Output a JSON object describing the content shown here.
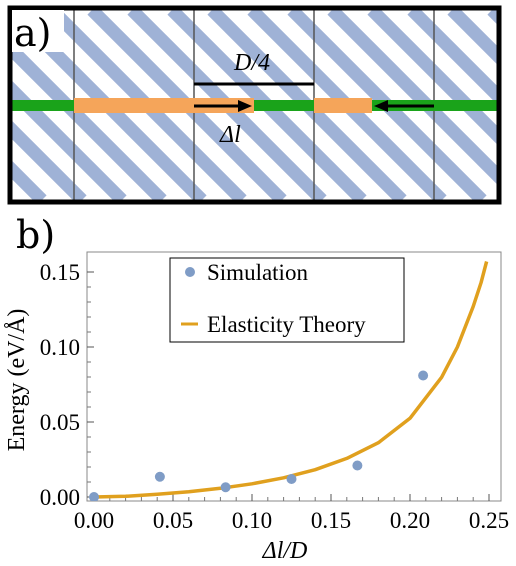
{
  "panel_a": {
    "label": "a)",
    "dimension_label": "D/4",
    "displacement_label": "Δl",
    "colors": {
      "hatch": "#9fb2d6",
      "green": "#1aa31a",
      "orange": "#f5a55a",
      "grid": "#555555",
      "frame": "#000000"
    }
  },
  "panel_b": {
    "label": "b)"
  },
  "chart_data": {
    "type": "scatter",
    "xlabel": "Δl/D",
    "ylabel": "Energy (eV/Å)",
    "xlim": [
      0.0,
      0.25
    ],
    "ylim": [
      0.0,
      0.16
    ],
    "x_ticks": [
      "0.00",
      "0.05",
      "0.10",
      "0.15",
      "0.20",
      "0.25"
    ],
    "y_ticks": [
      "0.00",
      "0.05",
      "0.10",
      "0.15"
    ],
    "legend_position": "top-center",
    "grid": false,
    "series": [
      {
        "name": "Simulation",
        "type": "scatter",
        "color": "#7f9cc6",
        "x": [
          0.0,
          0.0417,
          0.0833,
          0.125,
          0.1667,
          0.2083
        ],
        "y": [
          0.0,
          0.0135,
          0.0065,
          0.012,
          0.021,
          0.081
        ]
      },
      {
        "name": "Elasticity Theory",
        "type": "line",
        "color": "#e0a01e",
        "x": [
          0.0,
          0.02,
          0.04,
          0.06,
          0.08,
          0.1,
          0.12,
          0.14,
          0.16,
          0.18,
          0.2,
          0.22,
          0.23,
          0.24,
          0.245,
          0.2485
        ],
        "y": [
          0.0,
          0.0005,
          0.0018,
          0.0035,
          0.0058,
          0.0088,
          0.0128,
          0.0182,
          0.0257,
          0.0362,
          0.0525,
          0.0798,
          0.1,
          0.127,
          0.143,
          0.157
        ]
      }
    ]
  }
}
